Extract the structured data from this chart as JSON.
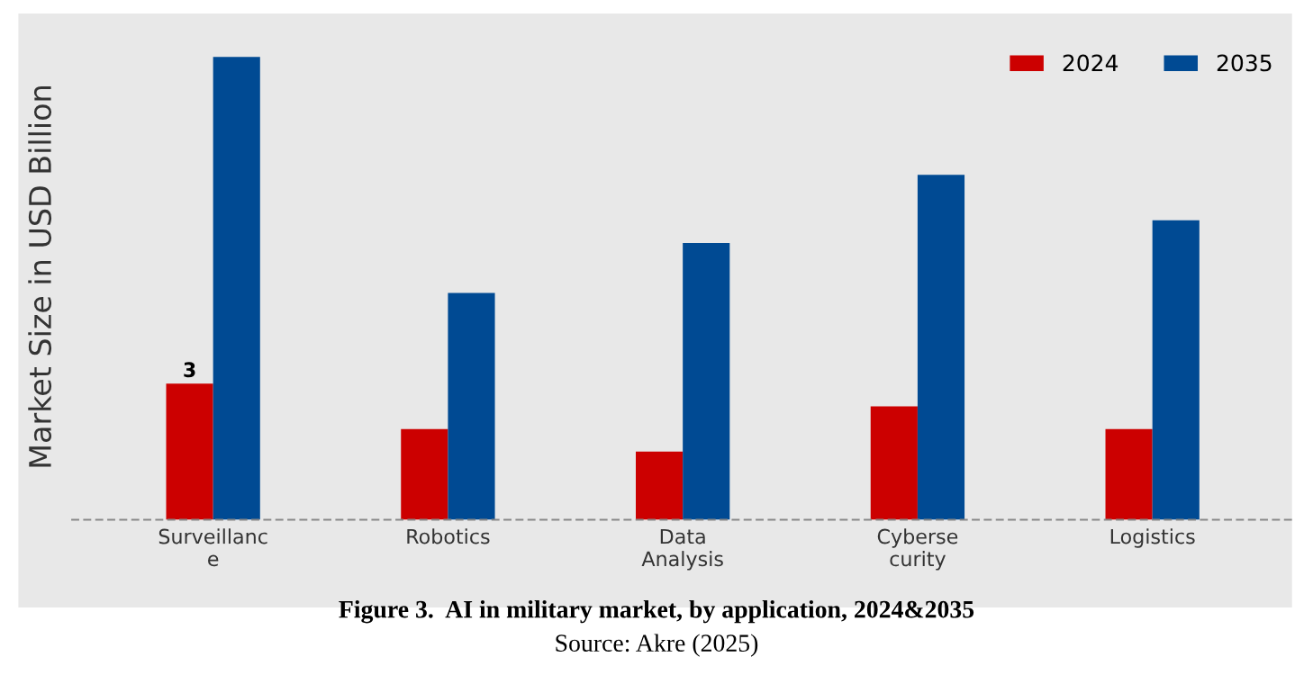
{
  "chart_data": {
    "type": "bar",
    "title": "Figure 3.  AI in military market, by application, 2024&2035",
    "ylabel": "Market Size in USD Billion",
    "annotations": [
      "Source: Akre (2025)"
    ],
    "categories": [
      "Surveillanc\ne",
      "Robotics",
      "Data\nAnalysis",
      "Cyberse\ncurity",
      "Logistics"
    ],
    "tick_labels": "x",
    "legend": "top right",
    "grid": false,
    "series": [
      {
        "name": "2024",
        "color": "#cc0000",
        "values": [
          3,
          2.0,
          1.5,
          2.5,
          2.0
        ],
        "value_labels": [
          "3",
          null,
          null,
          null,
          null
        ]
      },
      {
        "name": "2035",
        "color": "#004a93",
        "values": [
          10.2,
          5.0,
          6.1,
          7.6,
          6.6
        ]
      }
    ]
  }
}
